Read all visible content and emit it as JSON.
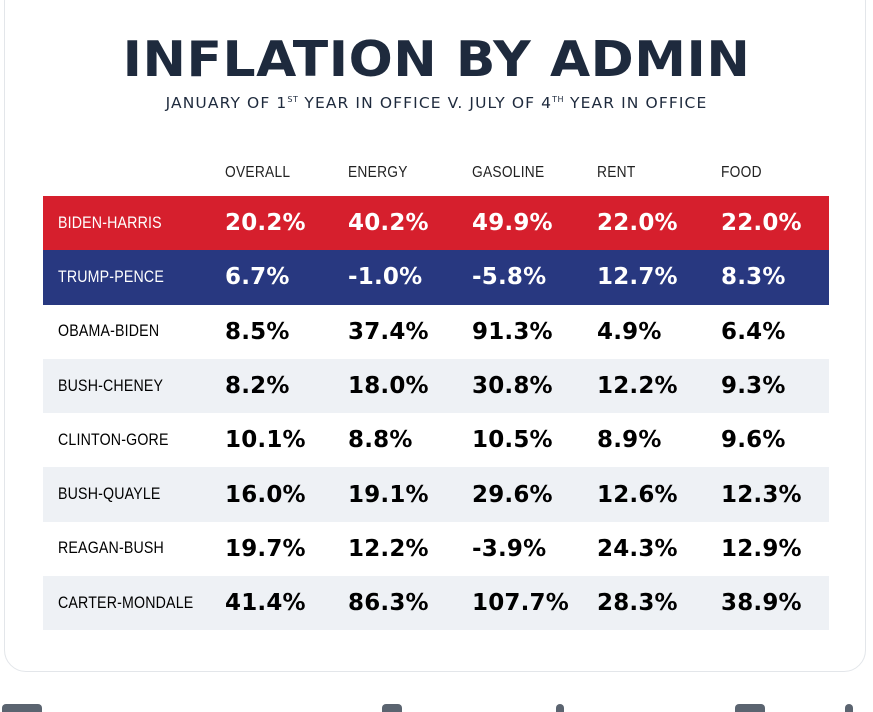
{
  "chart_data": {
    "type": "table",
    "title": "INFLATION BY ADMIN",
    "subtitle": {
      "part1": "JANUARY OF 1",
      "sup1": "ST",
      "part2": " YEAR IN OFFICE V. JULY OF 4",
      "sup2": "TH",
      "part3": " YEAR IN OFFICE"
    },
    "columns": [
      "OVERALL",
      "ENERGY",
      "GASOLINE",
      "RENT",
      "FOOD"
    ],
    "rows": [
      {
        "admin": "BIDEN-HARRIS",
        "values": [
          "20.2%",
          "40.2%",
          "49.9%",
          "22.0%",
          "22.0%"
        ],
        "highlight": "#d61f2d"
      },
      {
        "admin": "TRUMP-PENCE",
        "values": [
          "6.7%",
          "-1.0%",
          "-5.8%",
          "12.7%",
          "8.3%"
        ],
        "highlight": "#283880"
      },
      {
        "admin": "OBAMA-BIDEN",
        "values": [
          "8.5%",
          "37.4%",
          "91.3%",
          "4.9%",
          "6.4%"
        ]
      },
      {
        "admin": "BUSH-CHENEY",
        "values": [
          "8.2%",
          "18.0%",
          "30.8%",
          "12.2%",
          "9.3%"
        ]
      },
      {
        "admin": "CLINTON-GORE",
        "values": [
          "10.1%",
          "8.8%",
          "10.5%",
          "8.9%",
          "9.6%"
        ]
      },
      {
        "admin": "BUSH-QUAYLE",
        "values": [
          "16.0%",
          "19.1%",
          "29.6%",
          "12.6%",
          "12.3%"
        ]
      },
      {
        "admin": "REAGAN-BUSH",
        "values": [
          "19.7%",
          "12.2%",
          "-3.9%",
          "24.3%",
          "12.9%"
        ]
      },
      {
        "admin": "CARTER-MONDALE",
        "values": [
          "41.4%",
          "86.3%",
          "107.7%",
          "28.3%",
          "38.9%"
        ]
      }
    ]
  }
}
